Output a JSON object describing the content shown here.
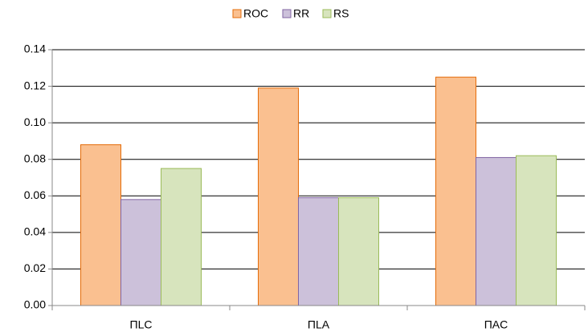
{
  "chart_data": {
    "type": "bar",
    "categories": [
      "ПLC",
      "ПLA",
      "ПAC"
    ],
    "series": [
      {
        "name": "ROC",
        "color": "#fac090",
        "values": [
          0.088,
          0.119,
          0.125
        ]
      },
      {
        "name": "RR",
        "color": "#ccc1da",
        "values": [
          0.058,
          0.059,
          0.081
        ]
      },
      {
        "name": "RS",
        "color": "#d7e4bd",
        "values": [
          0.075,
          0.059,
          0.082
        ]
      }
    ],
    "ylim": [
      0,
      0.14
    ],
    "yticks": [
      {
        "value": 0,
        "label": "0.00"
      },
      0.02,
      0.04,
      0.06,
      0.08,
      {
        "value": 0.1,
        "label": "0.10"
      },
      0.12,
      0.14
    ],
    "grid": true,
    "legend": "top"
  }
}
